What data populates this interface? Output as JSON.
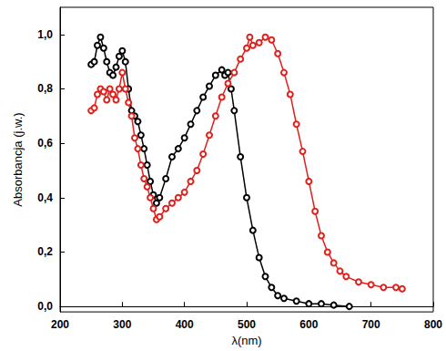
{
  "chart_data": {
    "type": "line",
    "x_label": "λ(nm)",
    "y_label": "Absorbancja (j.w.)",
    "xlim": [
      200,
      800
    ],
    "xticks": [
      200,
      300,
      400,
      500,
      600,
      700,
      800
    ],
    "ylim": [
      -0.02,
      1.1
    ],
    "yticks": [
      {
        "value": 0,
        "label": "0,0"
      },
      {
        "value": 0.2,
        "label": "0,2"
      },
      {
        "value": 0.4,
        "label": "0,4"
      },
      {
        "value": 0.6,
        "label": "0,6"
      },
      {
        "value": 0.8,
        "label": "0,8"
      },
      {
        "value": 1.0,
        "label": "1,0"
      }
    ],
    "grid": false,
    "marker": "open_circle",
    "series": [
      {
        "color": "#000000",
        "x": [
          250,
          255,
          260,
          265,
          270,
          275,
          280,
          285,
          290,
          295,
          300,
          305,
          310,
          315,
          320,
          325,
          330,
          335,
          340,
          345,
          350,
          355,
          360,
          370,
          380,
          390,
          400,
          410,
          420,
          430,
          440,
          450,
          460,
          465,
          470,
          475,
          480,
          490,
          500,
          510,
          520,
          530,
          540,
          550,
          560,
          580,
          600,
          620,
          640,
          665
        ],
        "values": [
          0.89,
          0.9,
          0.96,
          0.99,
          0.95,
          0.9,
          0.86,
          0.85,
          0.88,
          0.92,
          0.94,
          0.9,
          0.8,
          0.72,
          0.7,
          0.68,
          0.63,
          0.58,
          0.52,
          0.46,
          0.41,
          0.38,
          0.4,
          0.47,
          0.55,
          0.58,
          0.62,
          0.67,
          0.72,
          0.77,
          0.81,
          0.85,
          0.87,
          0.85,
          0.86,
          0.8,
          0.72,
          0.55,
          0.4,
          0.28,
          0.18,
          0.11,
          0.07,
          0.04,
          0.03,
          0.02,
          0.01,
          0.01,
          0.005,
          0.0
        ]
      },
      {
        "color": "#e0201b",
        "x": [
          250,
          255,
          260,
          265,
          270,
          275,
          280,
          285,
          290,
          295,
          300,
          305,
          310,
          315,
          320,
          325,
          330,
          335,
          340,
          345,
          350,
          355,
          360,
          370,
          380,
          390,
          400,
          410,
          420,
          430,
          440,
          450,
          460,
          470,
          480,
          490,
          500,
          505,
          510,
          520,
          530,
          540,
          550,
          560,
          570,
          580,
          590,
          600,
          610,
          620,
          630,
          640,
          650,
          660,
          680,
          700,
          720,
          740,
          750
        ],
        "values": [
          0.72,
          0.73,
          0.78,
          0.8,
          0.79,
          0.76,
          0.8,
          0.78,
          0.76,
          0.8,
          0.86,
          0.8,
          0.75,
          0.7,
          0.62,
          0.58,
          0.52,
          0.47,
          0.44,
          0.4,
          0.36,
          0.32,
          0.33,
          0.36,
          0.38,
          0.4,
          0.42,
          0.46,
          0.5,
          0.56,
          0.63,
          0.7,
          0.77,
          0.82,
          0.86,
          0.91,
          0.95,
          0.99,
          0.96,
          0.97,
          0.99,
          0.98,
          0.93,
          0.86,
          0.78,
          0.67,
          0.57,
          0.46,
          0.35,
          0.26,
          0.2,
          0.16,
          0.13,
          0.11,
          0.09,
          0.08,
          0.07,
          0.07,
          0.065
        ]
      }
    ]
  }
}
